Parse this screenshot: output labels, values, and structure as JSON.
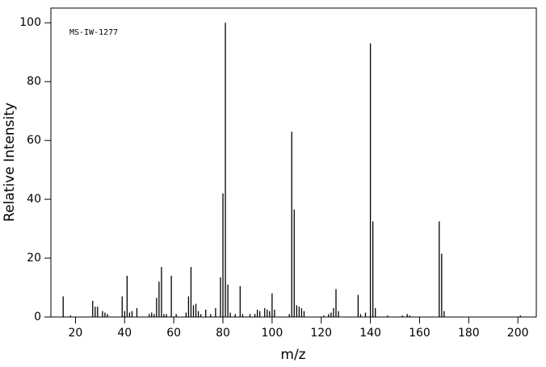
{
  "chart_data": {
    "type": "stick",
    "annotation": "MS-IW-1277",
    "x_label": "m/z",
    "y_label": "Relative Intensity",
    "color": "#000000",
    "xlim": [
      10,
      207.5
    ],
    "ylim": [
      0,
      105
    ],
    "xticks": [
      20,
      40,
      60,
      80,
      100,
      120,
      140,
      160,
      180,
      200
    ],
    "yticks": [
      0,
      20,
      40,
      60,
      80,
      100
    ],
    "x": [
      15,
      18,
      27,
      28,
      29,
      31,
      32,
      33,
      39,
      40,
      41,
      42,
      43,
      45,
      50,
      51,
      52,
      53,
      54,
      55,
      56,
      57,
      59,
      61,
      65,
      66,
      67,
      68,
      69,
      70,
      71,
      73,
      75,
      77,
      79,
      80,
      81,
      82,
      83,
      85,
      87,
      88,
      91,
      93,
      94,
      95,
      97,
      98,
      99,
      100,
      101,
      107,
      108,
      109,
      110,
      111,
      112,
      113,
      121,
      123,
      124,
      125,
      126,
      127,
      135,
      136,
      138,
      140,
      141,
      142,
      147,
      153,
      155,
      156,
      168,
      169,
      170,
      201
    ],
    "values": [
      7,
      0.5,
      5.5,
      3.5,
      3.5,
      2,
      1.5,
      1,
      7,
      2,
      14,
      1.5,
      2,
      3,
      1,
      1.5,
      1,
      6.5,
      12,
      17,
      1,
      1,
      14,
      1,
      1.5,
      7,
      17,
      4,
      4.5,
      2,
      1,
      2.5,
      1,
      3,
      13.5,
      42,
      100,
      11,
      1.5,
      1,
      10.5,
      1,
      1,
      1,
      2.5,
      2,
      3,
      2.5,
      2,
      8,
      2.5,
      1,
      63,
      36.5,
      4,
      3.5,
      3,
      2,
      0.5,
      1,
      1.5,
      3,
      9.5,
      2,
      7.5,
      1,
      1.5,
      93,
      32.5,
      3,
      0.5,
      0.5,
      1,
      0.5,
      32.5,
      21.5,
      2,
      0.5
    ]
  }
}
